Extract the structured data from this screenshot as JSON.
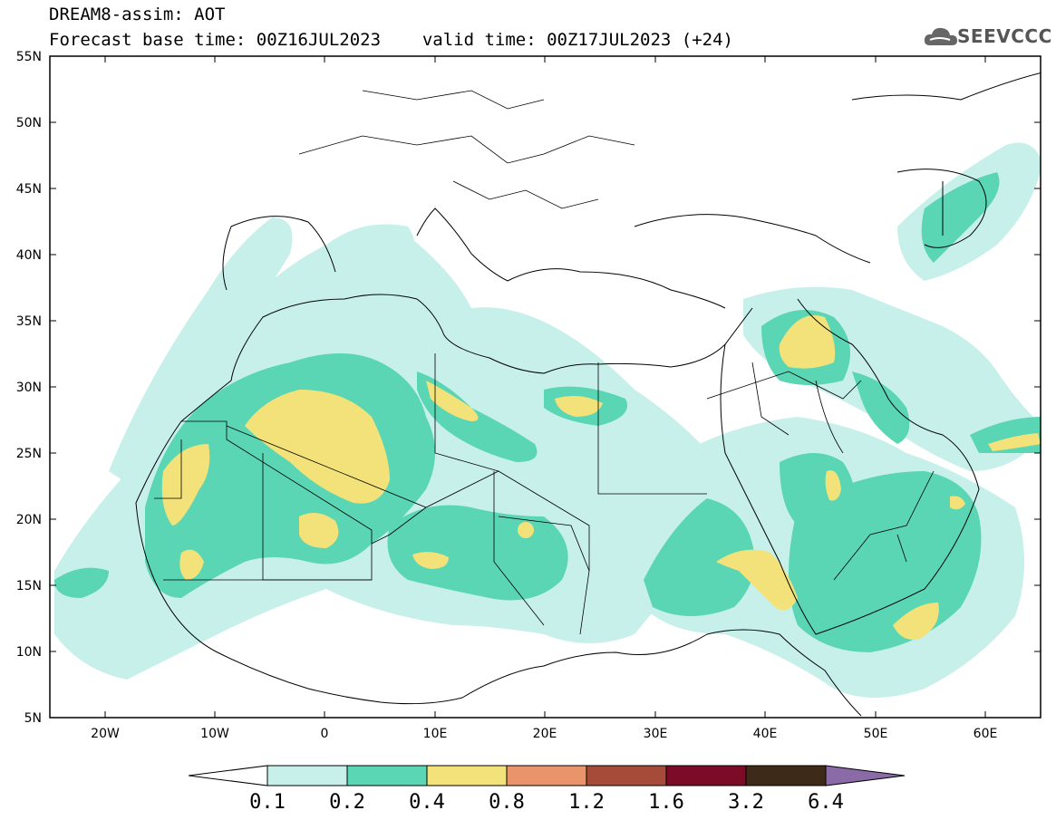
{
  "title": {
    "model_line": "DREAM8-assim: AOT",
    "base_time_line": "Forecast base time: 00Z16JUL2023",
    "valid_time_line": "valid time: 00Z17JUL2023 (+24)"
  },
  "logo": {
    "text": "SEEVCCC",
    "icon": "cloud-icon"
  },
  "map": {
    "lat_labels": [
      "55N",
      "50N",
      "45N",
      "40N",
      "35N",
      "30N",
      "25N",
      "20N",
      "15N",
      "10N",
      "5N"
    ],
    "lon_labels": [
      "20W",
      "10W",
      "0",
      "10E",
      "20E",
      "30E",
      "40E",
      "50E",
      "60E"
    ],
    "lat_range": [
      5,
      55
    ],
    "lon_range": [
      -25,
      65
    ],
    "grid": false
  },
  "colorbar": {
    "levels": [
      "0.1",
      "0.2",
      "0.4",
      "0.8",
      "1.2",
      "1.6",
      "3.2",
      "6.4"
    ],
    "colors": [
      "#ffffff",
      "#c8f0ea",
      "#5ad6b4",
      "#f3e27a",
      "#e9946a",
      "#a64a3a",
      "#7b0b26",
      "#3e2a18",
      "#8b6aa8"
    ]
  }
}
